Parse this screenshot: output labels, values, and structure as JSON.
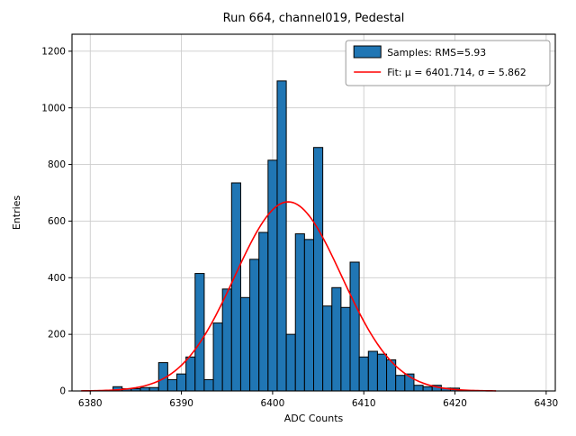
{
  "chart_data": {
    "type": "bar",
    "subtype": "histogram",
    "title": "Run 664, channel019, Pedestal",
    "xlabel": "ADC Counts",
    "ylabel": "Entries",
    "xlim": [
      6378,
      6431
    ],
    "ylim": [
      0,
      1260
    ],
    "xticks": [
      6380,
      6390,
      6400,
      6410,
      6420,
      6430
    ],
    "yticks": [
      0,
      200,
      400,
      600,
      800,
      1000,
      1200
    ],
    "grid": true,
    "bar_color": "#2076b4",
    "bar_edge_color": "#000000",
    "fit_color": "#ff0000",
    "grid_color": "#cccccc",
    "bin_width": 1,
    "bins": {
      "centers": [
        6383,
        6384,
        6385,
        6386,
        6387,
        6388,
        6389,
        6390,
        6391,
        6392,
        6393,
        6394,
        6395,
        6396,
        6397,
        6398,
        6399,
        6400,
        6401,
        6402,
        6403,
        6404,
        6405,
        6406,
        6407,
        6408,
        6409,
        6410,
        6411,
        6412,
        6413,
        6414,
        6415,
        6416,
        6417,
        6418,
        6419,
        6420
      ],
      "values": [
        15,
        8,
        8,
        12,
        12,
        100,
        40,
        60,
        120,
        415,
        40,
        240,
        360,
        735,
        330,
        465,
        560,
        815,
        1095,
        200,
        555,
        535,
        860,
        300,
        365,
        295,
        455,
        120,
        140,
        130,
        110,
        55,
        60,
        20,
        15,
        20,
        10,
        10
      ]
    },
    "fit": {
      "mu": 6401.714,
      "sigma": 5.862,
      "amplitude": 668,
      "range": [
        6379,
        6424.5
      ]
    },
    "legend": {
      "position": "top-right",
      "entries": [
        {
          "type": "patch",
          "label": "Samples: RMS=5.93"
        },
        {
          "type": "line",
          "label": "Fit: μ = 6401.714, σ = 5.862"
        }
      ]
    }
  }
}
